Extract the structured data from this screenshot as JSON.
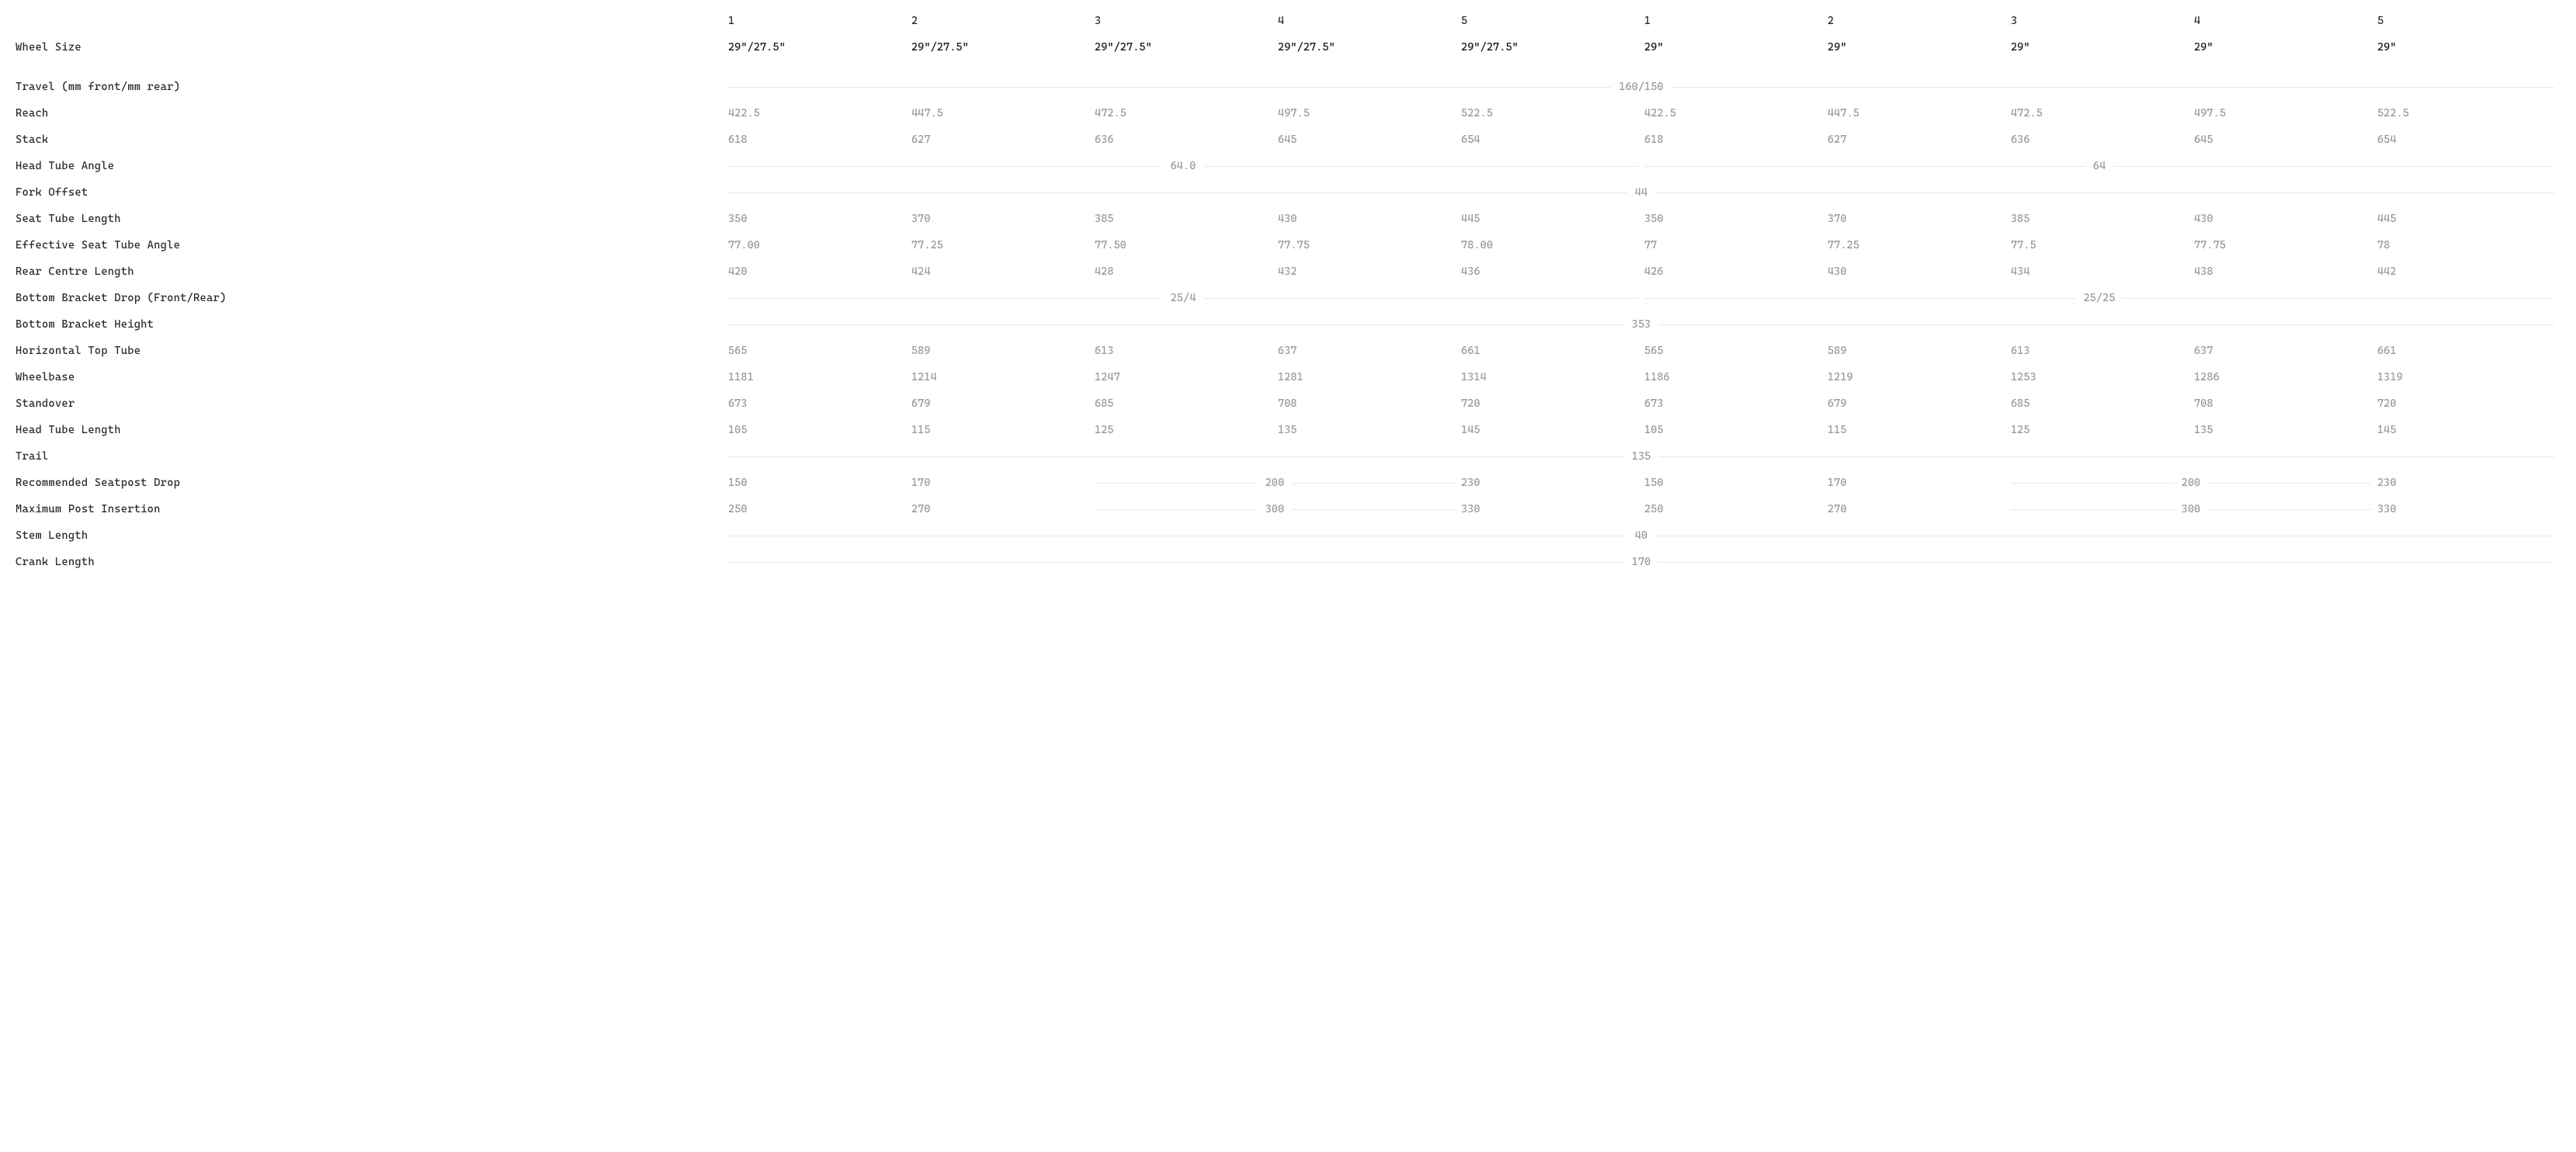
{
  "colors": {
    "background": "#ffffff",
    "label_text": "#2a2a2a",
    "header_text": "#1a1a1a",
    "data_text": "#9a9a97",
    "rule_line": "#e8e8e6"
  },
  "typography": {
    "family": "monospace",
    "size_pt": 11
  },
  "table": {
    "columns": {
      "left": [
        "1",
        "2",
        "3",
        "4",
        "5"
      ],
      "right": [
        "1",
        "2",
        "3",
        "4",
        "5"
      ]
    },
    "rows": [
      {
        "label": "Wheel Size",
        "class": "wheel-row header-row",
        "cells": [
          "29\"/27.5\"",
          "29\"/27.5\"",
          "29\"/27.5\"",
          "29\"/27.5\"",
          "29\"/27.5\"",
          "29\"",
          "29\"",
          "29\"",
          "29\"",
          "29\""
        ]
      },
      {
        "label": "Travel (mm front/mm rear)",
        "spans": [
          {
            "cols": 10,
            "value": "160/150"
          }
        ]
      },
      {
        "label": "Reach",
        "cells": [
          "422.5",
          "447.5",
          "472.5",
          "497.5",
          "522.5",
          "422.5",
          "447.5",
          "472.5",
          "497.5",
          "522.5"
        ]
      },
      {
        "label": "Stack",
        "cells": [
          "618",
          "627",
          "636",
          "645",
          "654",
          "618",
          "627",
          "636",
          "645",
          "654"
        ]
      },
      {
        "label": "Head Tube Angle",
        "spans": [
          {
            "cols": 5,
            "value": "64.0"
          },
          {
            "cols": 5,
            "value": "64"
          }
        ]
      },
      {
        "label": "Fork Offset",
        "spans": [
          {
            "cols": 10,
            "value": "44"
          }
        ]
      },
      {
        "label": "Seat Tube Length",
        "cells": [
          "350",
          "370",
          "385",
          "430",
          "445",
          "350",
          "370",
          "385",
          "430",
          "445"
        ]
      },
      {
        "label": "Effective Seat Tube Angle",
        "cells": [
          "77.00",
          "77.25",
          "77.50",
          "77.75",
          "78.00",
          "77",
          "77.25",
          "77.5",
          "77.75",
          "78"
        ]
      },
      {
        "label": "Rear Centre Length",
        "cells": [
          "420",
          "424",
          "428",
          "432",
          "436",
          "426",
          "430",
          "434",
          "438",
          "442"
        ]
      },
      {
        "label": "Bottom Bracket Drop (Front/Rear)",
        "spans": [
          {
            "cols": 5,
            "value": "25/4"
          },
          {
            "cols": 5,
            "value": "25/25"
          }
        ]
      },
      {
        "label": "Bottom Bracket Height",
        "spans": [
          {
            "cols": 10,
            "value": "353"
          }
        ]
      },
      {
        "label": "Horizontal Top Tube",
        "cells": [
          "565",
          "589",
          "613",
          "637",
          "661",
          "565",
          "589",
          "613",
          "637",
          "661"
        ]
      },
      {
        "label": "Wheelbase",
        "cells": [
          "1181",
          "1214",
          "1247",
          "1281",
          "1314",
          "1186",
          "1219",
          "1253",
          "1286",
          "1319"
        ]
      },
      {
        "label": "Standover",
        "cells": [
          "673",
          "679",
          "685",
          "708",
          "720",
          "673",
          "679",
          "685",
          "708",
          "720"
        ]
      },
      {
        "label": "Head Tube Length",
        "cells": [
          "105",
          "115",
          "125",
          "135",
          "145",
          "105",
          "115",
          "125",
          "135",
          "145"
        ]
      },
      {
        "label": "Trail",
        "spans": [
          {
            "cols": 10,
            "value": "135"
          }
        ]
      },
      {
        "label": "Recommended Seatpost Drop",
        "mixed": [
          {
            "type": "cell",
            "value": "150"
          },
          {
            "type": "cell",
            "value": "170"
          },
          {
            "type": "span",
            "cols": 2,
            "value": "200"
          },
          {
            "type": "cell",
            "value": "230"
          },
          {
            "type": "cell",
            "value": "150"
          },
          {
            "type": "cell",
            "value": "170"
          },
          {
            "type": "span",
            "cols": 2,
            "value": "200"
          },
          {
            "type": "cell",
            "value": "230"
          }
        ]
      },
      {
        "label": "Maximum Post Insertion",
        "mixed": [
          {
            "type": "cell",
            "value": "250"
          },
          {
            "type": "cell",
            "value": "270"
          },
          {
            "type": "span",
            "cols": 2,
            "value": "300"
          },
          {
            "type": "cell",
            "value": "330"
          },
          {
            "type": "cell",
            "value": "250"
          },
          {
            "type": "cell",
            "value": "270"
          },
          {
            "type": "span",
            "cols": 2,
            "value": "300"
          },
          {
            "type": "cell",
            "value": "330"
          }
        ]
      },
      {
        "label": "Stem Length",
        "spans": [
          {
            "cols": 10,
            "value": "40"
          }
        ]
      },
      {
        "label": "Crank Length",
        "spans": [
          {
            "cols": 10,
            "value": "170"
          }
        ]
      }
    ]
  }
}
